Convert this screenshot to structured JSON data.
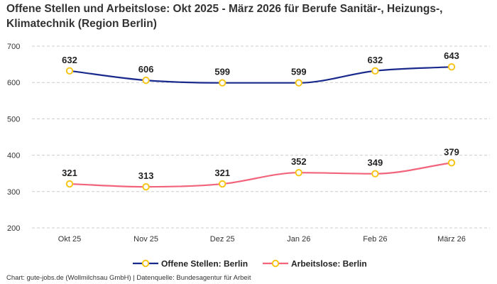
{
  "chart_data": {
    "type": "line",
    "title": "Offene Stellen und Arbeitslose: Okt 2025 - März 2026 für Berufe Sanitär-, Heizungs-, Klimatechnik (Region Berlin)",
    "categories": [
      "Okt 25",
      "Nov 25",
      "Dez 25",
      "Jan 26",
      "Feb 26",
      "März 26"
    ],
    "series": [
      {
        "name": "Offene Stellen: Berlin",
        "values": [
          632,
          606,
          599,
          599,
          632,
          643
        ],
        "color": "#1a2a8c"
      },
      {
        "name": "Arbeitslose: Berlin",
        "values": [
          321,
          313,
          321,
          352,
          349,
          379
        ],
        "color": "#f2647c"
      }
    ],
    "marker_color": "#f5c518",
    "ylim": [
      200,
      700
    ],
    "yticks": [
      200,
      300,
      400,
      500,
      600,
      700
    ],
    "grid": true,
    "legend": "bottom",
    "xlabel": "",
    "ylabel": ""
  },
  "footer": "Chart: gute-jobs.de (Wollmilchsau GmbH) | Datenquelle: Bundesagentur für Arbeit"
}
